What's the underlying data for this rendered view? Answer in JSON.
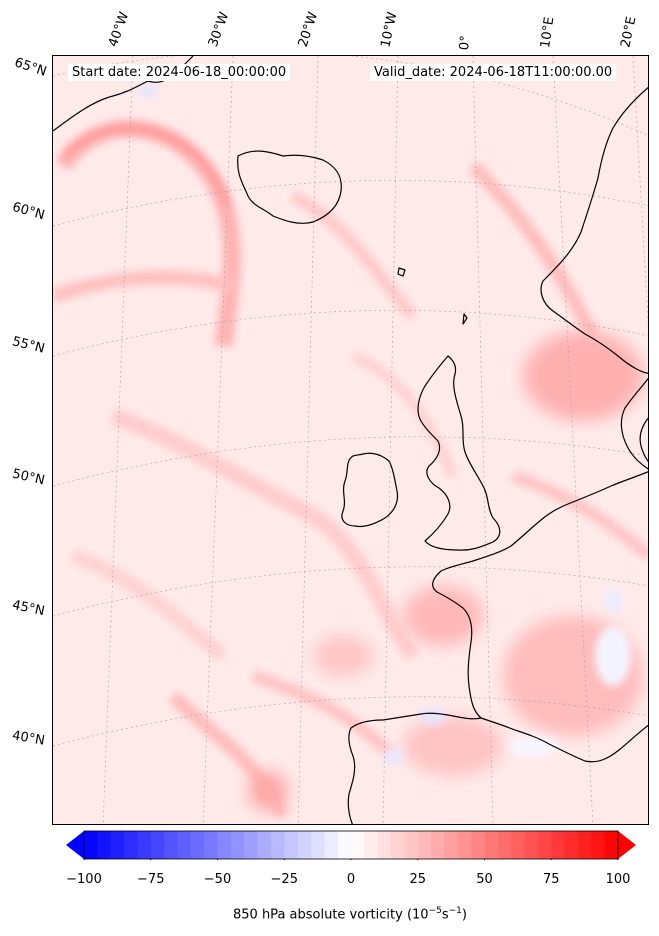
{
  "map": {
    "start_date": "Start date: 2024-06-18_00:00:00",
    "valid_date": "Valid_date: 2024-06-18T11:00:00.00",
    "lon_labels": [
      "40°W",
      "30°W",
      "20°W",
      "10°W",
      "0°",
      "10°E",
      "20°E"
    ],
    "lat_labels": [
      "65°N",
      "60°N",
      "55°N",
      "50°N",
      "45°N",
      "40°N"
    ],
    "extent": {
      "lon_min": -42,
      "lon_max": 22,
      "lat_min": 36,
      "lat_max": 66
    },
    "projection": "lambert-conformal",
    "gridlines": true,
    "coastlines": true
  },
  "colorbar": {
    "ticks": [
      "−100",
      "−75",
      "−50",
      "−25",
      "0",
      "25",
      "50",
      "75",
      "100"
    ],
    "label_prefix": "850 hPa absolute vorticity (10",
    "label_exp1": "−5",
    "label_mid": "s",
    "label_exp2": "−1",
    "label_suffix": ")",
    "range": [
      -100,
      100
    ],
    "extend": "both",
    "cmap": "bwr",
    "colors": {
      "min": "#0000ff",
      "mid": "#ffffff",
      "max": "#ff0000"
    }
  }
}
